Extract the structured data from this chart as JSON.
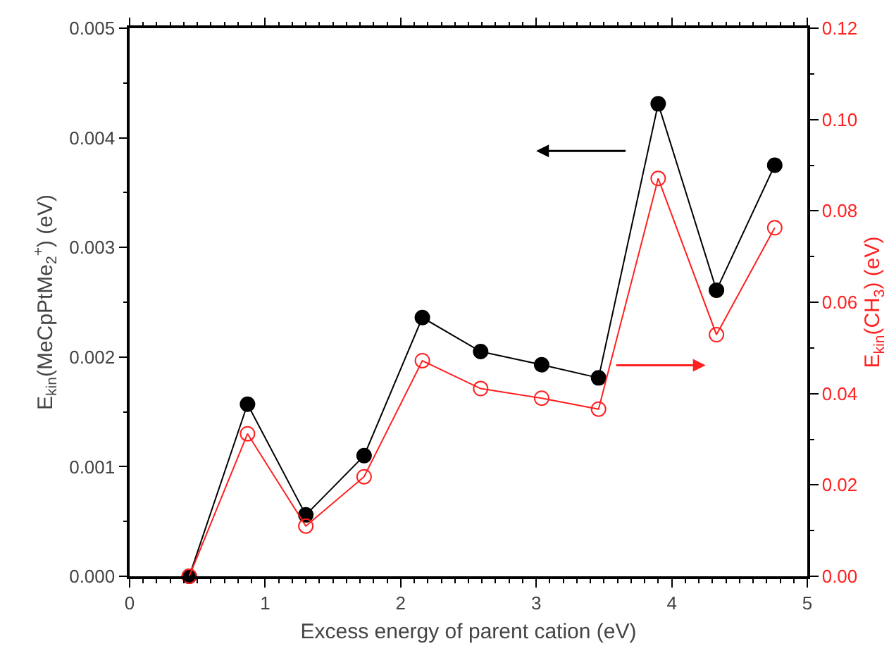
{
  "chart_data": {
    "type": "line",
    "xlabel": "Excess energy of parent cation (eV)",
    "ylabel": "E$_{kin}$(MeCpPtMe$_{2}$$^{+}$) (eV)",
    "y2label": "E$_{kin}$(CH$_{3}$) (eV)",
    "x": [
      0.44,
      0.87,
      1.3,
      1.73,
      2.16,
      2.59,
      3.04,
      3.46,
      3.9,
      4.33,
      4.76
    ],
    "series": [
      {
        "color": "#000000",
        "marker": "circle",
        "values": [
          0,
          0.00157,
          0.00056,
          0.0011,
          0.00236,
          0.00205,
          0.00193,
          0.00181,
          0.00431,
          0.00261,
          0.00375
        ]
      },
      {
        "color": "#ff2020",
        "marker": "circle-open",
        "axis": "y2",
        "values": [
          0,
          0.0312,
          0.011,
          0.0218,
          0.0472,
          0.0411,
          0.039,
          0.0366,
          0.0871,
          0.0529,
          0.0763
        ]
      }
    ],
    "xlim": [
      0,
      5
    ],
    "xticks": [
      0,
      1,
      2,
      3,
      4,
      5
    ],
    "ylim": [
      0,
      0.005
    ],
    "yticks": [
      {
        "value": 0,
        "label": "0.000"
      },
      {
        "value": 0.001,
        "label": "0.001"
      },
      {
        "value": 0.002,
        "label": "0.002"
      },
      {
        "value": 0.003,
        "label": "0.003"
      },
      {
        "value": 0.004,
        "label": "0.004"
      },
      {
        "value": 0.005,
        "label": "0.005"
      }
    ],
    "y2lim": [
      0,
      0.12
    ],
    "y2ticks": [
      {
        "value": 0,
        "label": "0.00"
      },
      {
        "value": 0.02,
        "label": "0.02"
      },
      {
        "value": 0.04,
        "label": "0.04"
      },
      {
        "value": 0.06,
        "label": "0.06"
      },
      {
        "value": 0.08,
        "label": "0.08"
      },
      {
        "value": 0.1,
        "label": "0.10"
      },
      {
        "value": 0.12,
        "label": "0.12"
      }
    ],
    "grid": false,
    "line_style": "solid"
  }
}
